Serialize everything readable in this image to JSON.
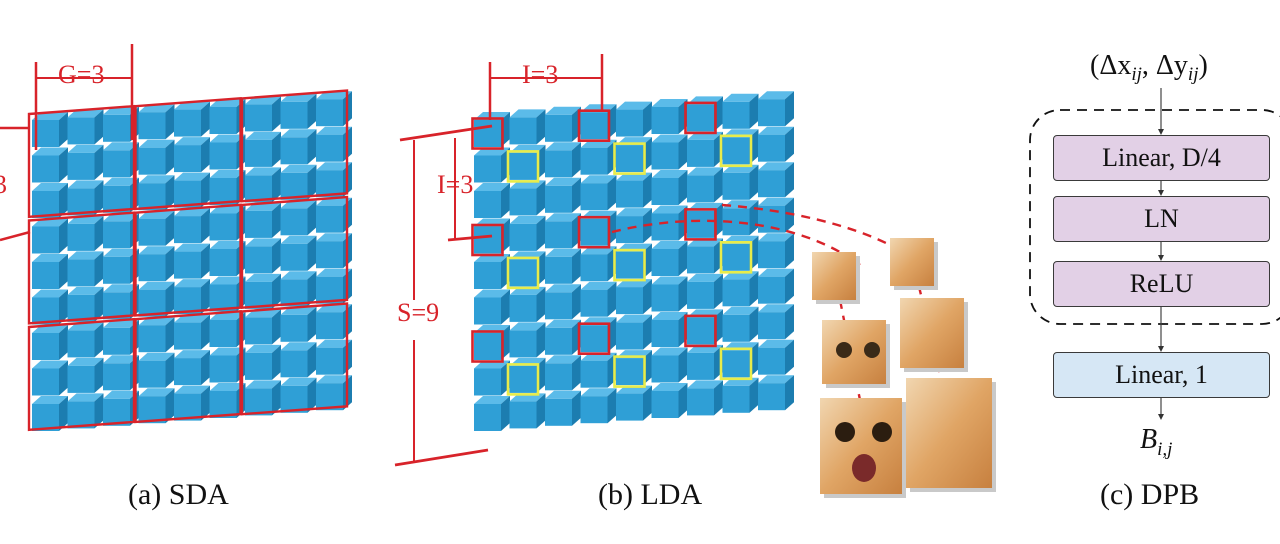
{
  "panels": {
    "sda": {
      "caption": "(a) SDA",
      "group_label": "G=3",
      "edge_label": "3"
    },
    "lda": {
      "caption": "(b) LDA",
      "interval_label_top": "I=3",
      "interval_label_side": "I=3",
      "size_label": "S=9"
    },
    "dpb": {
      "caption": "(c) DPB",
      "input": "(Δx",
      "input_sub1": "ij",
      "input_mid": ", Δy",
      "input_sub2": "ij",
      "input_end": ")",
      "blocks": [
        "Linear, D/4",
        "LN",
        "ReLU"
      ],
      "final_block": "Linear, 1",
      "output": "B",
      "output_sub": "i,j"
    }
  },
  "colors": {
    "cube_front": "#2f9fd6",
    "cube_top": "#5bbbe9",
    "cube_side": "#1c7db0",
    "highlight_red": "#d8232a",
    "highlight_yellow": "#e8ec4a",
    "mlp_block": "#e2d0e6",
    "linear_block": "#d6e7f5"
  }
}
